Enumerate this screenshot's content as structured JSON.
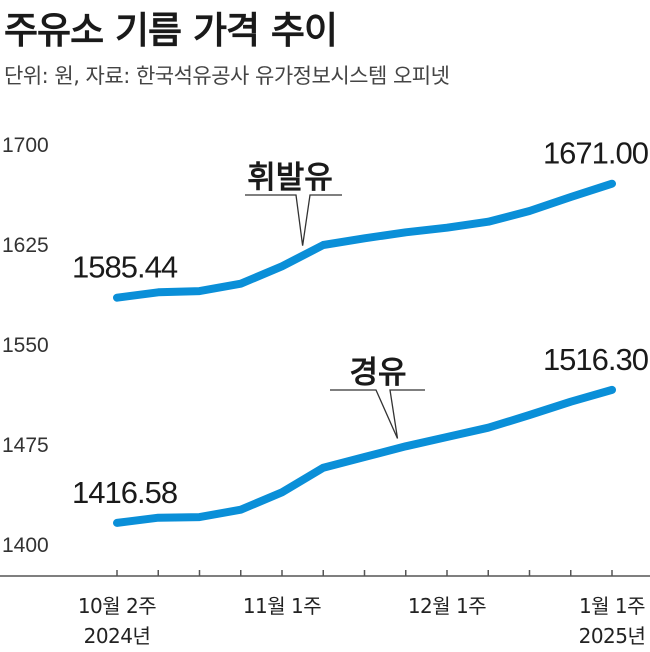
{
  "chart_data": {
    "type": "line",
    "title": "주유소 기름 가격 추이",
    "subtitle": "단위: 원, 자료: 한국석유공사 유가정보시스템 오피넷",
    "ylim": [
      1400,
      1700
    ],
    "y_ticks": [
      "1700",
      "1625",
      "1550",
      "1475",
      "1400"
    ],
    "y_tick_values": [
      1700,
      1625,
      1550,
      1475,
      1400
    ],
    "x_ticks": [
      {
        "index": 0,
        "label": "10월 2주",
        "sublabel": "2024년"
      },
      {
        "index": 4,
        "label": "11월 1주",
        "sublabel": ""
      },
      {
        "index": 8,
        "label": "12월 1주",
        "sublabel": ""
      },
      {
        "index": 12,
        "label": "1월 1주",
        "sublabel": "2025년"
      }
    ],
    "series": [
      {
        "name": "휘발유",
        "color": "#0a8fd8",
        "values": [
          1585.44,
          1589.5,
          1590.4,
          1596.0,
          1609.0,
          1625.0,
          1630.0,
          1634.5,
          1638.0,
          1642.5,
          1650.5,
          1661.0,
          1671.0
        ],
        "start_label": "1585.44",
        "end_label": "1671.00"
      },
      {
        "name": "경유",
        "color": "#0a8fd8",
        "values": [
          1416.58,
          1420.5,
          1420.9,
          1426.5,
          1439.5,
          1458.0,
          1466.0,
          1474.0,
          1481.0,
          1488.0,
          1497.5,
          1507.5,
          1516.3
        ],
        "start_label": "1416.58",
        "end_label": "1516.30"
      }
    ],
    "grid": false,
    "legend": "inline callout labels"
  }
}
